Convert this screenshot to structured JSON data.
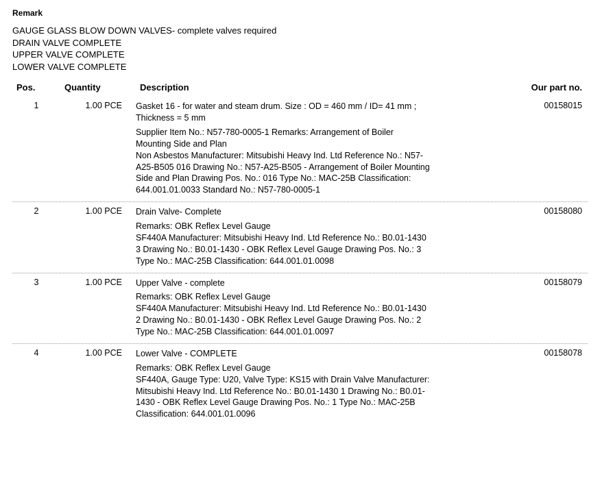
{
  "remark": {
    "heading": "Remark",
    "lines": [
      "GAUGE GLASS BLOW DOWN VALVES- complete valves required",
      "DRAIN VALVE COMPLETE",
      "UPPER VALVE COMPLETE",
      "LOWER VALVE COMPLETE"
    ]
  },
  "columns": {
    "pos": "Pos.",
    "quantity": "Quantity",
    "description": "Description",
    "part_no": "Our part no."
  },
  "rows": [
    {
      "pos": "1",
      "qty": "1.00 PCE",
      "title": "Gasket 16 - for water and steam drum. Size : OD = 460 mm / ID= 41 mm ; Thickness = 5 mm",
      "detail": "Supplier Item No.: N57-780-0005-1 Remarks: Arrangement of Boiler Mounting Side and Plan\nNon Asbestos Manufacturer: Mitsubishi Heavy Ind. Ltd Reference No.: N57-A25-B505 016 Drawing No.: N57-A25-B505 - Arrangement of Boiler Mounting Side and Plan Drawing Pos. No.: 016 Type No.: MAC-25B Classification: 644.001.01.0033 Standard No.: N57-780-0005-1",
      "part": "00158015"
    },
    {
      "pos": "2",
      "qty": "1.00 PCE",
      "title": "Drain Valve- Complete",
      "detail": "Remarks: OBK Reflex Level Gauge\nSF440A Manufacturer: Mitsubishi Heavy Ind. Ltd Reference No.: B0.01-1430 3 Drawing No.: B0.01-1430 - OBK Reflex Level Gauge Drawing Pos. No.: 3 Type No.: MAC-25B Classification: 644.001.01.0098",
      "part": "00158080"
    },
    {
      "pos": "3",
      "qty": "1.00 PCE",
      "title": "Upper Valve - complete",
      "detail": "Remarks: OBK Reflex Level Gauge\nSF440A Manufacturer: Mitsubishi Heavy Ind. Ltd Reference No.: B0.01-1430 2 Drawing No.: B0.01-1430 - OBK Reflex Level Gauge Drawing Pos. No.: 2 Type No.: MAC-25B Classification: 644.001.01.0097",
      "part": "00158079"
    },
    {
      "pos": "4",
      "qty": "1.00 PCE",
      "title": "Lower Valve - COMPLETE",
      "detail": "Remarks: OBK Reflex Level Gauge\nSF440A, Gauge Type: U20, Valve Type: KS15 with Drain Valve Manufacturer: Mitsubishi Heavy Ind. Ltd Reference No.: B0.01-1430 1 Drawing No.: B0.01-1430 - OBK Reflex Level Gauge Drawing Pos. No.: 1 Type No.: MAC-25B Classification: 644.001.01.0096",
      "part": "00158078"
    }
  ]
}
